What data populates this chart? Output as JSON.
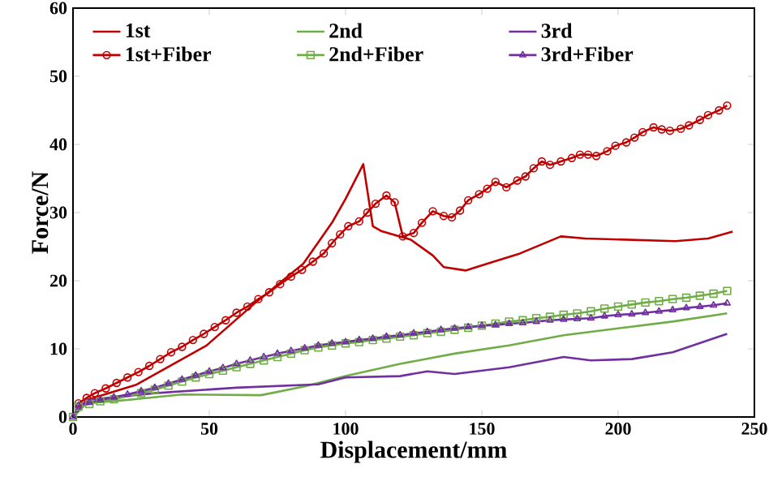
{
  "chart_data": {
    "type": "line",
    "xlabel": "Displacement/mm",
    "ylabel": "Force/N",
    "xlim": [
      0,
      250
    ],
    "ylim": [
      0,
      60
    ],
    "xticks": [
      0,
      50,
      100,
      150,
      200,
      250
    ],
    "yticks": [
      0,
      10,
      20,
      30,
      40,
      50,
      60
    ],
    "grid": false,
    "legend": "top",
    "line_style": "solid",
    "series": [
      {
        "name": "1st",
        "color": "#c00000",
        "marker": "none",
        "x": [
          0,
          5,
          23,
          49,
          67,
          84.5,
          88,
          95,
          100,
          106.5,
          110,
          113,
          124,
          132,
          136,
          144,
          152,
          164,
          179,
          188,
          221,
          233,
          242
        ],
        "values": [
          0,
          2.5,
          4.7,
          10.5,
          16.8,
          22.5,
          24.5,
          28.5,
          32,
          37.1,
          28,
          27.3,
          26,
          23.7,
          22,
          21.5,
          22.5,
          24,
          26.5,
          26.2,
          25.8,
          26.2,
          27.2
        ]
      },
      {
        "name": "2nd",
        "color": "#70ad47",
        "marker": "none",
        "x": [
          0,
          5,
          20,
          40,
          69,
          85,
          100,
          120,
          140,
          160,
          180,
          200,
          220,
          240
        ],
        "values": [
          0,
          2,
          2.5,
          3.3,
          3.2,
          4.5,
          6,
          7.8,
          9.3,
          10.5,
          12,
          13,
          14,
          15.2
        ]
      },
      {
        "name": "3rd",
        "color": "#7030a0",
        "marker": "none",
        "x": [
          0,
          5,
          30,
          60,
          90,
          100,
          120,
          130,
          140,
          160,
          180,
          190,
          205,
          220,
          240
        ],
        "values": [
          0,
          2.5,
          3.5,
          4.3,
          4.8,
          5.8,
          6,
          6.7,
          6.3,
          7.3,
          8.8,
          8.3,
          8.5,
          9.5,
          12.2
        ]
      },
      {
        "name": "1st+Fiber",
        "color": "#c00000",
        "marker": "circle",
        "x": [
          2,
          5,
          8,
          12,
          16,
          20,
          24,
          28,
          32,
          36,
          40,
          44,
          48,
          52,
          56,
          60,
          64,
          68,
          72,
          76,
          80,
          84,
          88,
          92,
          95,
          98,
          101,
          105,
          108,
          111,
          115,
          118,
          121,
          125,
          128,
          132,
          136,
          139,
          142,
          145,
          149,
          152,
          155,
          159,
          163,
          166,
          169,
          172,
          175,
          179,
          183,
          186,
          189,
          192,
          196,
          199,
          203,
          206,
          209,
          213,
          216,
          219,
          223,
          226,
          230,
          233,
          237,
          240
        ],
        "values": [
          2,
          2.8,
          3.5,
          4.2,
          5,
          5.8,
          6.6,
          7.5,
          8.5,
          9.5,
          10.3,
          11.3,
          12.2,
          13.2,
          14.2,
          15.3,
          16.2,
          17.3,
          18.3,
          19.5,
          20.6,
          21.6,
          22.8,
          24,
          25.5,
          26.8,
          28,
          28.7,
          30,
          31.3,
          32.5,
          31.5,
          26.5,
          27,
          28.5,
          30.2,
          29.5,
          29.3,
          30.3,
          31.8,
          32.7,
          33.5,
          34.5,
          33.7,
          34.7,
          35.3,
          36.5,
          37.5,
          37,
          37.5,
          38,
          38.5,
          38.5,
          38.3,
          39,
          39.8,
          40.3,
          41,
          41.8,
          42.5,
          42.2,
          42,
          42.3,
          42.8,
          43.6,
          44.3,
          45,
          45.7
        ]
      },
      {
        "name": "2nd+Fiber",
        "color": "#70ad47",
        "marker": "square",
        "x": [
          0,
          2,
          6,
          10,
          15,
          20,
          25,
          30,
          35,
          40,
          45,
          50,
          55,
          60,
          65,
          70,
          75,
          80,
          85,
          90,
          95,
          100,
          105,
          110,
          115,
          120,
          125,
          130,
          135,
          140,
          145,
          150,
          155,
          160,
          165,
          170,
          175,
          180,
          185,
          190,
          195,
          200,
          205,
          210,
          215,
          220,
          225,
          230,
          235,
          240
        ],
        "values": [
          0,
          1.5,
          1.9,
          2.3,
          2.6,
          null,
          3.5,
          4,
          4.6,
          5.2,
          5.8,
          6.3,
          6.8,
          7.3,
          7.8,
          8.3,
          8.8,
          9.3,
          9.8,
          10.2,
          10.5,
          10.8,
          11,
          11.3,
          11.5,
          11.8,
          12,
          12.3,
          12.5,
          12.8,
          13.1,
          13.4,
          13.7,
          14,
          14.2,
          14.5,
          14.7,
          15,
          15.2,
          15.5,
          15.9,
          16.2,
          16.5,
          16.8,
          17,
          17.3,
          17.5,
          17.8,
          18.1,
          18.5
        ]
      },
      {
        "name": "3rd+Fiber",
        "color": "#7030a0",
        "marker": "triangle",
        "x": [
          0,
          2,
          6,
          10,
          15,
          20,
          25,
          30,
          35,
          40,
          45,
          50,
          55,
          60,
          65,
          70,
          75,
          80,
          85,
          90,
          95,
          100,
          105,
          110,
          115,
          120,
          125,
          130,
          135,
          140,
          145,
          150,
          155,
          160,
          165,
          170,
          175,
          180,
          185,
          190,
          195,
          200,
          205,
          210,
          215,
          220,
          225,
          230,
          235,
          240
        ],
        "values": [
          0,
          1.7,
          2.1,
          2.5,
          2.9,
          3.3,
          3.8,
          4.3,
          4.9,
          5.5,
          6.1,
          6.7,
          7.2,
          7.8,
          8.3,
          8.8,
          9.3,
          9.7,
          10.1,
          10.5,
          10.8,
          11,
          11.3,
          11.5,
          11.8,
          12,
          12.3,
          12.5,
          12.8,
          13,
          13.2,
          13.4,
          13.5,
          13.7,
          13.8,
          14,
          14.2,
          14.3,
          14.4,
          14.5,
          14.8,
          15,
          15.1,
          15.3,
          15.5,
          15.7,
          16,
          16.2,
          16.4,
          16.7
        ]
      }
    ]
  }
}
